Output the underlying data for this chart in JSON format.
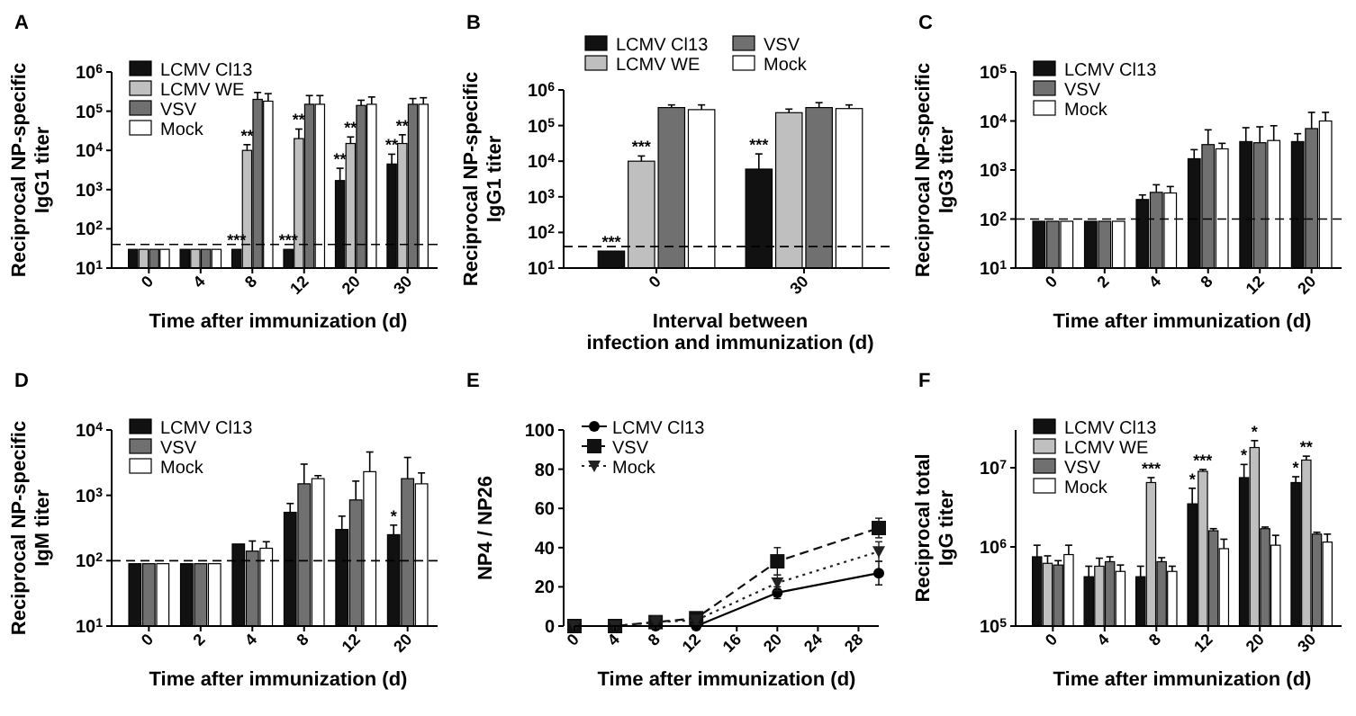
{
  "chart_data": [
    {
      "type": "bar",
      "title": "A",
      "ylabel": "Reciprocal NP-specific\nIgG1 titer",
      "xlabel": "Time after immunization (d)",
      "log": true,
      "ylim": [
        10,
        1000000
      ],
      "yticks": [
        {
          "value": 10,
          "label": "10$^{1}$"
        },
        {
          "value": 100,
          "label": "10$^{2}$"
        },
        {
          "value": 1000,
          "label": "10$^{3}$"
        },
        {
          "value": 10000,
          "label": "10$^{4}$"
        },
        {
          "value": 100000,
          "label": "10$^{5}$"
        },
        {
          "value": 1000000,
          "label": "10$^{6}$"
        }
      ],
      "categories": [
        "0",
        "4",
        "8",
        "12",
        "20",
        "30"
      ],
      "legend": "top left",
      "series": [
        {
          "name": "LCMV Cl13",
          "color": "#111111",
          "values": [
            30,
            30,
            30,
            30,
            1700,
            4500
          ],
          "errors": [
            null,
            null,
            null,
            null,
            [
              1700,
              3500
            ],
            [
              4500,
              8000
            ]
          ]
        },
        {
          "name": "LCMV WE",
          "color": "#bfbfbf",
          "values": [
            30,
            30,
            10000,
            20000,
            15000,
            15000
          ],
          "errors": [
            null,
            null,
            [
              10000,
              14000
            ],
            [
              20000,
              35000
            ],
            [
              15000,
              22000
            ],
            [
              15000,
              25000
            ]
          ]
        },
        {
          "name": "VSV",
          "color": "#707070",
          "values": [
            30,
            30,
            200000,
            150000,
            140000,
            150000
          ],
          "errors": [
            null,
            null,
            [
              200000,
              300000
            ],
            [
              150000,
              250000
            ],
            [
              140000,
              190000
            ],
            [
              150000,
              210000
            ]
          ]
        },
        {
          "name": "Mock",
          "color": "#ffffff",
          "values": [
            30,
            30,
            180000,
            150000,
            150000,
            150000
          ],
          "errors": [
            null,
            null,
            [
              180000,
              280000
            ],
            [
              150000,
              250000
            ],
            [
              150000,
              230000
            ],
            [
              150000,
              220000
            ]
          ]
        }
      ],
      "ref_lines": [
        {
          "axis": "y",
          "value": 40,
          "line_style": "dashed"
        }
      ],
      "annotations": [
        {
          "text": "***",
          "x": "8",
          "y": 30
        },
        {
          "text": "**",
          "x": "8",
          "y": 14000
        },
        {
          "text": "***",
          "x": "12",
          "y": 30
        },
        {
          "text": "**",
          "x": "12",
          "y": 35000
        },
        {
          "text": "**",
          "x": "20",
          "y": 3500
        },
        {
          "text": "**",
          "x": "20",
          "y": 22000
        },
        {
          "text": "**",
          "x": "30",
          "y": 8000
        },
        {
          "text": "**",
          "x": "30",
          "y": 25000
        }
      ]
    },
    {
      "type": "bar",
      "title": "B",
      "ylabel": "Reciprocal NP-specific\nIgG1 titer",
      "xlabel": "Interval between\ninfection and immunization (d)",
      "log": true,
      "ylim": [
        10,
        1000000
      ],
      "yticks": [
        {
          "value": 10,
          "label": "10$^{1}$"
        },
        {
          "value": 100,
          "label": "10$^{2}$"
        },
        {
          "value": 1000,
          "label": "10$^{3}$"
        },
        {
          "value": 10000,
          "label": "10$^{4}$"
        },
        {
          "value": 100000,
          "label": "10$^{5}$"
        },
        {
          "value": 1000000,
          "label": "10$^{6}$"
        }
      ],
      "categories": [
        "0",
        "30"
      ],
      "legend": "top",
      "series": [
        {
          "name": "LCMV Cl13",
          "color": "#111111",
          "values": [
            30,
            6000
          ],
          "errors": [
            null,
            [
              6000,
              16000
            ]
          ]
        },
        {
          "name": "LCMV WE",
          "color": "#bfbfbf",
          "values": [
            10000,
            230000
          ],
          "errors": [
            [
              10000,
              14000
            ],
            [
              230000,
              290000
            ]
          ]
        },
        {
          "name": "VSV",
          "color": "#707070",
          "values": [
            320000,
            320000
          ],
          "errors": [
            [
              320000,
              380000
            ],
            [
              320000,
              440000
            ]
          ]
        },
        {
          "name": "Mock",
          "color": "#ffffff",
          "values": [
            280000,
            300000
          ],
          "errors": [
            [
              280000,
              380000
            ],
            [
              300000,
              380000
            ]
          ]
        }
      ],
      "ref_lines": [
        {
          "axis": "y",
          "value": 40,
          "line_style": "dashed"
        }
      ],
      "annotations": [
        {
          "text": "***",
          "x": "0",
          "y": 30
        },
        {
          "text": "***",
          "x": "0",
          "y": 14000
        },
        {
          "text": "***",
          "x": "30",
          "y": 16000
        }
      ]
    },
    {
      "type": "bar",
      "title": "C",
      "ylabel": "Reciprocal NP-specific\nIgG3 titer",
      "xlabel": "Time after immunization (d)",
      "log": true,
      "ylim": [
        10,
        100000
      ],
      "yticks": [
        {
          "value": 10,
          "label": "10$^{1}$"
        },
        {
          "value": 100,
          "label": "10$^{2}$"
        },
        {
          "value": 1000,
          "label": "10$^{3}$"
        },
        {
          "value": 10000,
          "label": "10$^{4}$"
        },
        {
          "value": 100000,
          "label": "10$^{5}$"
        }
      ],
      "categories": [
        "0",
        "2",
        "4",
        "8",
        "12",
        "20"
      ],
      "legend": "top left",
      "series": [
        {
          "name": "LCMV Cl13",
          "color": "#111111",
          "values": [
            90,
            90,
            250,
            1700,
            3800,
            3800
          ],
          "errors": [
            null,
            null,
            [
              250,
              310
            ],
            [
              1700,
              2600
            ],
            [
              3800,
              7300
            ],
            [
              3800,
              5500
            ]
          ]
        },
        {
          "name": "VSV",
          "color": "#707070",
          "values": [
            90,
            90,
            350,
            3300,
            3600,
            7000
          ],
          "errors": [
            null,
            null,
            [
              350,
              500
            ],
            [
              3300,
              6600
            ],
            [
              3600,
              7600
            ],
            [
              7000,
              15000
            ]
          ]
        },
        {
          "name": "Mock",
          "color": "#ffffff",
          "values": [
            90,
            90,
            340,
            2700,
            4000,
            10000
          ],
          "errors": [
            null,
            null,
            [
              340,
              460
            ],
            [
              2700,
              3500
            ],
            [
              4000,
              8000
            ],
            [
              10000,
              15000
            ]
          ]
        }
      ],
      "ref_lines": [
        {
          "axis": "y",
          "value": 100,
          "line_style": "dashed"
        }
      ]
    },
    {
      "type": "bar",
      "title": "D",
      "ylabel": "Reciprocal NP-specific\nIgM titer",
      "xlabel": "Time after immunization (d)",
      "log": true,
      "ylim": [
        10,
        10000
      ],
      "yticks": [
        {
          "value": 10,
          "label": "10$^{1}$"
        },
        {
          "value": 100,
          "label": "10$^{2}$"
        },
        {
          "value": 1000,
          "label": "10$^{3}$"
        },
        {
          "value": 10000,
          "label": "10$^{4}$"
        }
      ],
      "categories": [
        "0",
        "2",
        "4",
        "8",
        "12",
        "20"
      ],
      "legend": "top left",
      "series": [
        {
          "name": "LCMV Cl13",
          "color": "#111111",
          "values": [
            90,
            90,
            180,
            550,
            300,
            250
          ],
          "errors": [
            null,
            null,
            null,
            [
              550,
              750
            ],
            [
              300,
              480
            ],
            [
              250,
              350
            ]
          ]
        },
        {
          "name": "VSV",
          "color": "#707070",
          "values": [
            90,
            90,
            140,
            1500,
            850,
            1800
          ],
          "errors": [
            null,
            null,
            [
              140,
              200
            ],
            [
              1500,
              3000
            ],
            [
              850,
              1650
            ],
            [
              1800,
              3800
            ]
          ]
        },
        {
          "name": "Mock",
          "color": "#ffffff",
          "values": [
            90,
            90,
            155,
            1800,
            2300,
            1500
          ],
          "errors": [
            null,
            null,
            [
              155,
              195
            ],
            [
              1800,
              2000
            ],
            [
              2300,
              4600
            ],
            [
              1500,
              2200
            ]
          ]
        }
      ],
      "ref_lines": [
        {
          "axis": "y",
          "value": 100,
          "line_style": "dashed"
        }
      ],
      "annotations": [
        {
          "text": "*",
          "x": "20",
          "y": 350
        }
      ]
    },
    {
      "type": "line",
      "title": "E",
      "ylabel": "NP4 / NP26",
      "xlabel": "Time after immunization (d)",
      "xlim": [
        0,
        30
      ],
      "xticks": [
        0,
        4,
        8,
        12,
        16,
        20,
        24,
        28
      ],
      "ylim": [
        0,
        100
      ],
      "yticks": [
        0,
        20,
        40,
        60,
        80,
        100
      ],
      "legend": "top left",
      "x": [
        0,
        4,
        8,
        12,
        20,
        30
      ],
      "series": [
        {
          "name": "LCMV Cl13",
          "color": "#000000",
          "marker": "circle",
          "line_style": "solid",
          "values": [
            0,
            0,
            0,
            0,
            17,
            27
          ],
          "errors": [
            null,
            null,
            null,
            null,
            3,
            6
          ]
        },
        {
          "name": "VSV",
          "color": "#111111",
          "marker": "square",
          "line_style": "dashed",
          "values": [
            0,
            0,
            2,
            4,
            33,
            50
          ],
          "errors": [
            null,
            null,
            3,
            2,
            7,
            5
          ]
        },
        {
          "name": "Mock",
          "color": "#222222",
          "marker": "triangle",
          "line_style": "dotted",
          "values": [
            0,
            0,
            2,
            3,
            22,
            38
          ],
          "errors": [
            null,
            null,
            3,
            2,
            4,
            5
          ]
        }
      ]
    },
    {
      "type": "bar",
      "title": "F",
      "ylabel": "Reciprocal total\nIgG titer",
      "xlabel": "Time after immunization (d)",
      "log": true,
      "ylim": [
        100000,
        30000000
      ],
      "yticks": [
        {
          "value": 100000,
          "label": "10$^{5}$"
        },
        {
          "value": 1000000,
          "label": "10$^{6}$"
        },
        {
          "value": 10000000,
          "label": "10$^{7}$"
        }
      ],
      "categories": [
        "0",
        "4",
        "8",
        "12",
        "20",
        "30"
      ],
      "legend": "top left",
      "series": [
        {
          "name": "LCMV Cl13",
          "color": "#111111",
          "values": [
            750000,
            420000,
            420000,
            3500000,
            7500000,
            6500000
          ],
          "errors": [
            [
              750000,
              1050000
            ],
            [
              420000,
              570000
            ],
            [
              420000,
              570000
            ],
            [
              3500000,
              5500000
            ],
            [
              7500000,
              11000000
            ],
            [
              6500000,
              7700000
            ]
          ]
        },
        {
          "name": "LCMV WE",
          "color": "#bfbfbf",
          "values": [
            620000,
            570000,
            6500000,
            9000000,
            18000000,
            12500000
          ],
          "errors": [
            [
              620000,
              770000
            ],
            [
              570000,
              720000
            ],
            [
              6500000,
              7500000
            ],
            [
              9000000,
              9500000
            ],
            [
              18000000,
              22000000
            ],
            [
              12500000,
              14000000
            ]
          ]
        },
        {
          "name": "VSV",
          "color": "#707070",
          "values": [
            590000,
            650000,
            650000,
            1600000,
            1700000,
            1450000
          ],
          "errors": [
            [
              590000,
              670000
            ],
            [
              650000,
              750000
            ],
            [
              650000,
              730000
            ],
            [
              1600000,
              1700000
            ],
            [
              1700000,
              1780000
            ],
            [
              1450000,
              1530000
            ]
          ]
        },
        {
          "name": "Mock",
          "color": "#ffffff",
          "values": [
            800000,
            490000,
            490000,
            950000,
            1050000,
            1150000
          ],
          "errors": [
            [
              800000,
              1050000
            ],
            [
              490000,
              590000
            ],
            [
              490000,
              570000
            ],
            [
              950000,
              1250000
            ],
            [
              1050000,
              1400000
            ],
            [
              1150000,
              1450000
            ]
          ]
        }
      ],
      "annotations": [
        {
          "text": "***",
          "x": "8",
          "y": 7500000
        },
        {
          "text": "*",
          "x": "12",
          "y": 5500000
        },
        {
          "text": "***",
          "x": "12",
          "y": 9500000
        },
        {
          "text": "*",
          "x": "20",
          "y": 11000000
        },
        {
          "text": "*",
          "x": "20",
          "y": 22000000
        },
        {
          "text": "*",
          "x": "30",
          "y": 7700000
        },
        {
          "text": "**",
          "x": "30",
          "y": 14000000
        }
      ]
    }
  ]
}
